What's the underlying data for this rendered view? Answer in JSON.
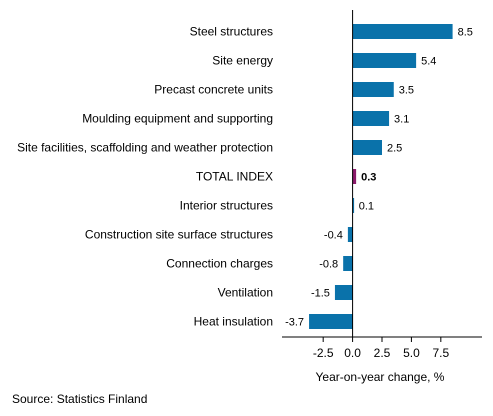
{
  "chart_data": {
    "type": "bar",
    "orientation": "horizontal",
    "categories": [
      "Steel structures",
      "Site energy",
      "Precast concrete units",
      "Moulding equipment and supporting",
      "Site facilities, scaffolding and weather protection",
      "TOTAL INDEX",
      "Interior structures",
      "Construction site surface structures",
      "Connection charges",
      "Ventilation",
      "Heat insulation"
    ],
    "values": [
      8.5,
      5.4,
      3.5,
      3.1,
      2.5,
      0.3,
      0.1,
      -0.4,
      -0.8,
      -1.5,
      -3.7
    ],
    "value_labels": [
      "8.5",
      "5.4",
      "3.5",
      "3.1",
      "2.5",
      "0.3",
      "0.1",
      "-0.4",
      "-0.8",
      "-1.5",
      "-3.7"
    ],
    "highlight_category": "TOTAL INDEX",
    "xlabel": "Year-on-year change, %",
    "xlim": [
      -6,
      11
    ],
    "xticks": [
      -2.5,
      0.0,
      2.5,
      5.0,
      7.5
    ],
    "xtick_labels": [
      "-2.5",
      "0.0",
      "2.5",
      "5.0",
      "7.5"
    ],
    "grid": false,
    "colors": {
      "bar": "#0a72aa",
      "highlight": "#8b1a6b",
      "axis": "#000000"
    }
  },
  "source": "Source: Statistics Finland"
}
